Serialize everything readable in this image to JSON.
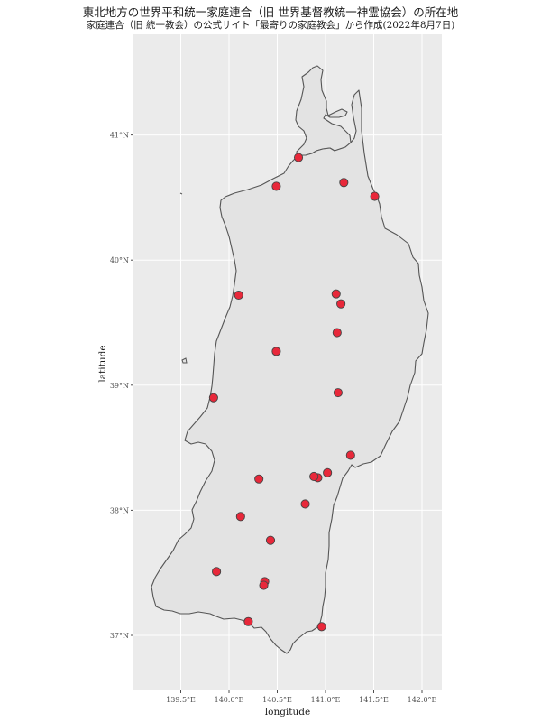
{
  "title": "東北地方の世界平和統一家庭連合（旧 世界基督教統一神霊協会）の所在地",
  "subtitle": "家庭連合（旧 統一教会）の公式サイト「最寄りの家庭教会」から作成(2022年8月7日)",
  "chart_data": {
    "type": "scatter",
    "xlabel": "longitude",
    "ylabel": "latitude",
    "xlim": [
      139.0,
      142.2
    ],
    "ylim": [
      36.6,
      41.6
    ],
    "x_ticks": [
      {
        "value": 139.5,
        "label": "139.5°E"
      },
      {
        "value": 140.0,
        "label": "140.0°E"
      },
      {
        "value": 140.5,
        "label": "140.5°E"
      },
      {
        "value": 141.0,
        "label": "141.0°E"
      },
      {
        "value": 141.5,
        "label": "141.5°E"
      },
      {
        "value": 142.0,
        "label": "142.0°E"
      }
    ],
    "y_ticks": [
      {
        "value": 37,
        "label": "37°N"
      },
      {
        "value": 38,
        "label": "38°N"
      },
      {
        "value": 39,
        "label": "39°N"
      },
      {
        "value": 40,
        "label": "40°N"
      },
      {
        "value": 41,
        "label": "41°N"
      }
    ],
    "grid": true,
    "points": [
      {
        "lon": 140.72,
        "lat": 40.82
      },
      {
        "lon": 140.49,
        "lat": 40.59
      },
      {
        "lon": 141.19,
        "lat": 40.62
      },
      {
        "lon": 141.51,
        "lat": 40.51
      },
      {
        "lon": 140.1,
        "lat": 39.72
      },
      {
        "lon": 141.11,
        "lat": 39.73
      },
      {
        "lon": 141.16,
        "lat": 39.65
      },
      {
        "lon": 141.12,
        "lat": 39.42
      },
      {
        "lon": 140.49,
        "lat": 39.27
      },
      {
        "lon": 141.13,
        "lat": 38.94
      },
      {
        "lon": 139.84,
        "lat": 38.9
      },
      {
        "lon": 141.26,
        "lat": 38.44
      },
      {
        "lon": 140.92,
        "lat": 38.26
      },
      {
        "lon": 140.88,
        "lat": 38.27
      },
      {
        "lon": 141.02,
        "lat": 38.3
      },
      {
        "lon": 140.31,
        "lat": 38.25
      },
      {
        "lon": 140.79,
        "lat": 38.05
      },
      {
        "lon": 140.12,
        "lat": 37.95
      },
      {
        "lon": 140.43,
        "lat": 37.76
      },
      {
        "lon": 139.87,
        "lat": 37.51
      },
      {
        "lon": 140.37,
        "lat": 37.43
      },
      {
        "lon": 140.36,
        "lat": 37.4
      },
      {
        "lon": 140.2,
        "lat": 37.11
      },
      {
        "lon": 140.96,
        "lat": 37.07
      }
    ],
    "colors": {
      "panel_bg": "#ebebeb",
      "grid": "#ffffff",
      "land_fill": "#e3e3e3",
      "coast_stroke": "#555555",
      "point_fill": "#e8283a",
      "point_stroke": "#444444"
    }
  }
}
